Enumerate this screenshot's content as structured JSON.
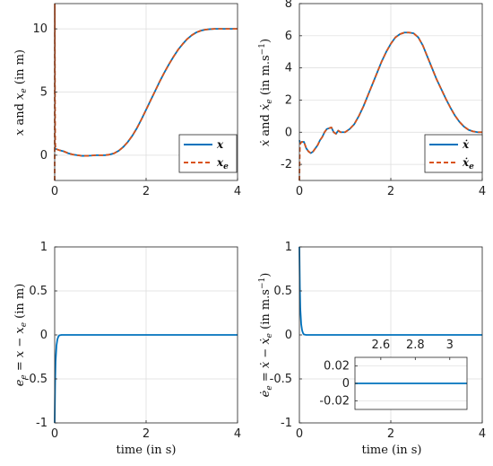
{
  "chart_data": [
    {
      "id": "tl",
      "type": "line",
      "xlim": [
        0,
        4
      ],
      "ylim": [
        -2,
        12
      ],
      "xticks": [
        "0",
        "2",
        "4"
      ],
      "yticks": [
        "0",
        "5",
        "10"
      ],
      "ylabel_parts": {
        "a": "x",
        "b": " and ",
        "c": "x",
        "sub": "e",
        "d": " (in m)"
      },
      "grid": true,
      "legend_position": "bottom-right",
      "series": [
        {
          "name": "x",
          "color": "#0072BD",
          "dash": "solid",
          "x": [
            0.0,
            0.02,
            0.1,
            0.2,
            0.3,
            0.4,
            0.5,
            0.6,
            0.7,
            0.8,
            0.9,
            1.0,
            1.1,
            1.2,
            1.3,
            1.4,
            1.5,
            1.6,
            1.7,
            1.8,
            1.9,
            2.0,
            2.1,
            2.2,
            2.3,
            2.4,
            2.5,
            2.6,
            2.7,
            2.8,
            2.9,
            3.0,
            3.1,
            3.2,
            3.3,
            3.4,
            3.5,
            3.6,
            3.7,
            3.8,
            3.9,
            4.0
          ],
          "y": [
            0.6,
            0.5,
            0.4,
            0.3,
            0.15,
            0.05,
            0.0,
            -0.05,
            -0.05,
            -0.03,
            0.0,
            0.0,
            0.0,
            0.05,
            0.15,
            0.35,
            0.65,
            1.05,
            1.55,
            2.15,
            2.85,
            3.6,
            4.35,
            5.1,
            5.85,
            6.55,
            7.2,
            7.8,
            8.35,
            8.8,
            9.2,
            9.5,
            9.72,
            9.86,
            9.94,
            9.98,
            10.0,
            10.0,
            10.0,
            10.0,
            10.0,
            10.0
          ]
        },
        {
          "name": "x_e",
          "color": "#D95319",
          "dash": "dashed",
          "x": [
            0.0,
            0.003,
            0.007,
            0.012,
            0.02,
            0.1,
            0.2,
            0.3,
            0.4,
            0.5,
            0.6,
            0.7,
            0.8,
            0.9,
            1.0,
            1.1,
            1.2,
            1.3,
            1.4,
            1.5,
            1.6,
            1.7,
            1.8,
            1.9,
            2.0,
            2.1,
            2.2,
            2.3,
            2.4,
            2.5,
            2.6,
            2.7,
            2.8,
            2.9,
            3.0,
            3.1,
            3.2,
            3.3,
            3.4,
            3.5,
            3.6,
            3.7,
            3.8,
            3.9,
            4.0
          ],
          "y": [
            -2.0,
            12.0,
            5.0,
            1.0,
            0.5,
            0.4,
            0.3,
            0.15,
            0.05,
            0.0,
            -0.05,
            -0.05,
            -0.03,
            0.0,
            0.0,
            0.0,
            0.05,
            0.15,
            0.35,
            0.65,
            1.05,
            1.55,
            2.15,
            2.85,
            3.6,
            4.35,
            5.1,
            5.85,
            6.55,
            7.2,
            7.8,
            8.35,
            8.8,
            9.2,
            9.5,
            9.72,
            9.86,
            9.94,
            9.98,
            10.0,
            10.0,
            10.0,
            10.0,
            10.0,
            10.0
          ]
        }
      ]
    },
    {
      "id": "tr",
      "type": "line",
      "xlim": [
        0,
        4
      ],
      "ylim": [
        -3,
        8
      ],
      "xticks": [
        "0",
        "2",
        "4"
      ],
      "yticks": [
        "-2",
        "0",
        "2",
        "4",
        "6",
        "8"
      ],
      "ylabel_parts": {
        "a": "ẋ",
        "b": " and ",
        "c": "ẋ",
        "sub": "e",
        "d": " (in m.s",
        "sup": "−1",
        "e": ")"
      },
      "grid": true,
      "legend_position": "bottom-right",
      "series": [
        {
          "name": "ẋ",
          "color": "#0072BD",
          "dash": "solid",
          "x": [
            0.0,
            0.02,
            0.05,
            0.1,
            0.15,
            0.2,
            0.25,
            0.3,
            0.35,
            0.4,
            0.45,
            0.5,
            0.55,
            0.6,
            0.65,
            0.7,
            0.75,
            0.8,
            0.85,
            0.9,
            1.0,
            1.1,
            1.2,
            1.3,
            1.4,
            1.5,
            1.6,
            1.7,
            1.8,
            1.9,
            2.0,
            2.1,
            2.2,
            2.3,
            2.4,
            2.5,
            2.6,
            2.7,
            2.8,
            2.9,
            3.0,
            3.1,
            3.2,
            3.3,
            3.4,
            3.5,
            3.6,
            3.7,
            3.8,
            3.9,
            4.0
          ],
          "y": [
            -0.5,
            -0.7,
            -0.6,
            -0.6,
            -1.0,
            -1.2,
            -1.3,
            -1.2,
            -1.0,
            -0.8,
            -0.5,
            -0.3,
            0.0,
            0.2,
            0.25,
            0.3,
            0.0,
            -0.1,
            0.1,
            0.0,
            0.0,
            0.2,
            0.5,
            1.0,
            1.6,
            2.3,
            3.0,
            3.7,
            4.4,
            5.0,
            5.5,
            5.9,
            6.1,
            6.2,
            6.2,
            6.15,
            5.9,
            5.4,
            4.7,
            4.0,
            3.3,
            2.7,
            2.1,
            1.55,
            1.05,
            0.65,
            0.35,
            0.15,
            0.05,
            0.0,
            0.0
          ]
        },
        {
          "name": "ẋ_e",
          "color": "#D95319",
          "dash": "dashed",
          "x": [
            0.0,
            0.005,
            0.01,
            0.02,
            0.05,
            0.1,
            0.15,
            0.2,
            0.25,
            0.3,
            0.35,
            0.4,
            0.45,
            0.5,
            0.55,
            0.6,
            0.65,
            0.7,
            0.75,
            0.8,
            0.85,
            0.9,
            1.0,
            1.1,
            1.2,
            1.3,
            1.4,
            1.5,
            1.6,
            1.7,
            1.8,
            1.9,
            2.0,
            2.1,
            2.2,
            2.3,
            2.4,
            2.5,
            2.6,
            2.7,
            2.8,
            2.9,
            3.0,
            3.1,
            3.2,
            3.3,
            3.4,
            3.5,
            3.6,
            3.7,
            3.8,
            3.9,
            4.0
          ],
          "y": [
            -3.0,
            -2.0,
            -1.0,
            -0.7,
            -0.6,
            -0.6,
            -1.0,
            -1.2,
            -1.3,
            -1.2,
            -1.0,
            -0.8,
            -0.5,
            -0.3,
            0.0,
            0.2,
            0.25,
            0.3,
            0.0,
            -0.1,
            0.1,
            0.0,
            0.0,
            0.2,
            0.5,
            1.0,
            1.6,
            2.3,
            3.0,
            3.7,
            4.4,
            5.0,
            5.5,
            5.9,
            6.1,
            6.2,
            6.2,
            6.15,
            5.9,
            5.4,
            4.7,
            4.0,
            3.3,
            2.7,
            2.1,
            1.55,
            1.05,
            0.65,
            0.35,
            0.15,
            0.05,
            0.0,
            0.0
          ]
        }
      ]
    },
    {
      "id": "bl",
      "type": "line",
      "xlim": [
        0,
        4
      ],
      "ylim": [
        -1,
        1
      ],
      "xticks": [
        "0",
        "2",
        "4"
      ],
      "yticks": [
        "-1",
        "-0.5",
        "0",
        "0.5",
        "1"
      ],
      "xlabel": "time (in s)",
      "ylabel_parts": {
        "a": "e",
        "asub": "e",
        "b": " = x − x",
        "sub": "e",
        "d": " (in m)"
      },
      "grid": true,
      "series": [
        {
          "name": "e_e",
          "color": "#0072BD",
          "dash": "solid",
          "x": [
            0.0,
            0.01,
            0.02,
            0.04,
            0.06,
            0.08,
            0.1,
            0.15,
            0.2,
            4.0
          ],
          "y": [
            -1.0,
            -0.55,
            -0.3,
            -0.12,
            -0.05,
            -0.02,
            -0.005,
            0.0,
            0.0,
            0.0
          ]
        }
      ]
    },
    {
      "id": "br",
      "type": "line",
      "xlim": [
        0,
        4
      ],
      "ylim": [
        -1,
        1
      ],
      "xticks": [
        "0",
        "2",
        "4"
      ],
      "yticks": [
        "-1",
        "-0.5",
        "0",
        "0.5",
        "1"
      ],
      "xlabel": "time (in s)",
      "ylabel_parts": {
        "a": "ė",
        "asub": "e",
        "b": " = ẋ − ẋ",
        "sub": "e",
        "d": " (in m.s",
        "sup": "−1",
        "e": ")"
      },
      "grid": true,
      "series": [
        {
          "name": "ė_e",
          "color": "#0072BD",
          "dash": "solid",
          "x": [
            0.0,
            0.01,
            0.02,
            0.04,
            0.06,
            0.08,
            0.1,
            0.15,
            0.2,
            4.0
          ],
          "y": [
            1.0,
            0.55,
            0.3,
            0.12,
            0.05,
            0.02,
            0.005,
            0.0,
            0.0,
            0.0
          ]
        }
      ],
      "inset": {
        "xlim": [
          2.45,
          3.1
        ],
        "ylim": [
          -0.03,
          0.03
        ],
        "xticks": [
          "2.6",
          "2.8",
          "3"
        ],
        "xtick_values": [
          2.6,
          2.8,
          3.0
        ],
        "yticks": [
          "0.02",
          "0",
          "-0.02"
        ],
        "ytick_values": [
          0.02,
          0.0,
          -0.02
        ],
        "series": {
          "x": [
            2.45,
            3.1
          ],
          "y": [
            0.0,
            0.0
          ]
        }
      }
    }
  ]
}
